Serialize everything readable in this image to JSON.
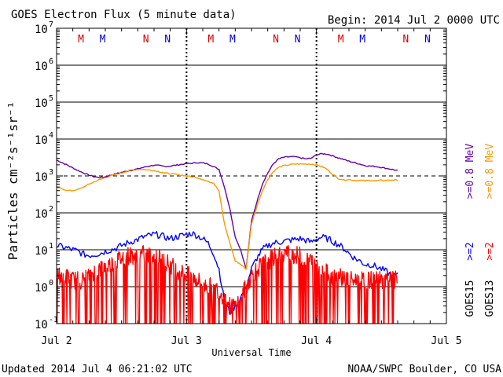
{
  "chart_data": {
    "type": "line",
    "title": "GOES Electron Flux (5 minute data)",
    "begin_label": "Begin: 2014 Jul 2 0000 UTC",
    "xlabel": "Universal Time",
    "ylabel": "Particles cm⁻²s⁻¹sr⁻¹",
    "xlim": [
      0,
      72
    ],
    "x_unit": "hours since 2014 Jul 2 0000 UTC",
    "x_ticks": [
      {
        "x": 0,
        "label": "Jul 2"
      },
      {
        "x": 24,
        "label": "Jul 3"
      },
      {
        "x": 48,
        "label": "Jul 4"
      },
      {
        "x": 72,
        "label": "Jul 5"
      }
    ],
    "y_scale": "log",
    "ylim": [
      0.1,
      10000000
    ],
    "y_ticks": [
      {
        "exp": "-1",
        "value": 0.1
      },
      {
        "exp": "0",
        "value": 1
      },
      {
        "exp": "1",
        "value": 10
      },
      {
        "exp": "2",
        "value": 100
      },
      {
        "exp": "3",
        "value": 1000
      },
      {
        "exp": "4",
        "value": 10000
      },
      {
        "exp": "5",
        "value": 100000
      },
      {
        "exp": "6",
        "value": 1000000
      },
      {
        "exp": "7",
        "value": 10000000
      }
    ],
    "y_tick_base": "10",
    "threshold": {
      "value": 1000,
      "style": "dashed"
    },
    "markers": [
      {
        "x": 4.5,
        "label": "M",
        "color": "#dd0000"
      },
      {
        "x": 8.5,
        "label": "M",
        "color": "#0000dd"
      },
      {
        "x": 16.5,
        "label": "N",
        "color": "#dd0000"
      },
      {
        "x": 20.5,
        "label": "N",
        "color": "#0000dd"
      },
      {
        "x": 28.5,
        "label": "M",
        "color": "#dd0000"
      },
      {
        "x": 32.5,
        "label": "M",
        "color": "#0000dd"
      },
      {
        "x": 40.5,
        "label": "N",
        "color": "#dd0000"
      },
      {
        "x": 44.5,
        "label": "N",
        "color": "#0000dd"
      },
      {
        "x": 52.5,
        "label": "M",
        "color": "#dd0000"
      },
      {
        "x": 56.5,
        "label": "M",
        "color": "#0000dd"
      },
      {
        "x": 64.5,
        "label": "N",
        "color": "#dd0000"
      },
      {
        "x": 68.5,
        "label": "N",
        "color": "#0000dd"
      }
    ],
    "satellite_labels": [
      "GOES15",
      "GOES13"
    ],
    "legend": [
      {
        "label": ">=0.8 MeV",
        "satellite": "GOES15",
        "color": "#6600aa"
      },
      {
        "label": ">=0.8 MeV",
        "satellite": "GOES13",
        "color": "#ff9900"
      },
      {
        "label": ">=2",
        "satellite": "GOES15",
        "color": "#0000ff"
      },
      {
        "label": ">=2",
        "satellite": "GOES13",
        "color": "#ff0000"
      }
    ],
    "series": [
      {
        "name": ">=0.8 MeV GOES15",
        "color": "#6600aa",
        "style": "line",
        "x": [
          0,
          1,
          2,
          3,
          4,
          5,
          6,
          7,
          8,
          9,
          10,
          11,
          12,
          13,
          14,
          15,
          16,
          17,
          18,
          19,
          20,
          21,
          22,
          23,
          24,
          25,
          26,
          27,
          28,
          29,
          30,
          31,
          32,
          33,
          34,
          35,
          36,
          37,
          38,
          39,
          40,
          41,
          42,
          43,
          44,
          45,
          46,
          47,
          48,
          49,
          50,
          51,
          52,
          53,
          54,
          55,
          56,
          57,
          58,
          59,
          60,
          61,
          62,
          63
        ],
        "y": [
          2700,
          2300,
          1950,
          1650,
          1400,
          1200,
          1050,
          950,
          900,
          950,
          1050,
          1150,
          1250,
          1350,
          1450,
          1550,
          1700,
          1850,
          1950,
          1900,
          1800,
          1850,
          1950,
          2050,
          2150,
          2200,
          2300,
          2250,
          2100,
          1800,
          1500,
          500,
          130,
          22,
          10,
          3,
          60,
          200,
          600,
          1200,
          2100,
          2900,
          3200,
          3300,
          3300,
          3100,
          2900,
          3000,
          3700,
          4000,
          3900,
          3500,
          3100,
          2800,
          2500,
          2300,
          2100,
          1900,
          1850,
          1800,
          1700,
          1600,
          1500,
          1400
        ]
      },
      {
        "name": ">=0.8 MeV GOES13",
        "color": "#ff9900",
        "style": "line",
        "x": [
          0,
          1,
          2,
          3,
          4,
          5,
          6,
          7,
          8,
          9,
          10,
          11,
          12,
          13,
          14,
          15,
          16,
          17,
          18,
          19,
          20,
          21,
          22,
          23,
          24,
          25,
          26,
          27,
          28,
          29,
          30,
          31,
          32,
          33,
          34,
          35,
          36,
          37,
          38,
          39,
          40,
          41,
          42,
          43,
          44,
          45,
          46,
          47,
          48,
          49,
          50,
          51,
          52,
          53,
          54,
          55,
          56,
          57,
          58,
          59,
          60,
          61,
          62,
          63
        ],
        "y": [
          500,
          450,
          400,
          400,
          430,
          500,
          600,
          700,
          800,
          900,
          1000,
          1100,
          1200,
          1350,
          1450,
          1500,
          1500,
          1450,
          1400,
          1300,
          1200,
          1150,
          1100,
          1050,
          1000,
          950,
          900,
          800,
          700,
          650,
          400,
          50,
          15,
          5,
          4,
          3,
          50,
          150,
          400,
          800,
          1300,
          1700,
          1900,
          2000,
          2100,
          2100,
          2100,
          2100,
          2000,
          1800,
          1500,
          1100,
          850,
          780,
          800,
          760,
          760,
          740,
          760,
          740,
          760,
          760,
          780,
          760
        ]
      },
      {
        "name": ">=2 GOES15",
        "color": "#0000ff",
        "style": "line",
        "x": [
          0,
          1,
          2,
          3,
          4,
          5,
          6,
          7,
          8,
          9,
          10,
          11,
          12,
          13,
          14,
          15,
          16,
          17,
          18,
          19,
          20,
          21,
          22,
          23,
          24,
          25,
          26,
          27,
          28,
          29,
          30,
          31,
          32,
          33,
          34,
          35,
          36,
          37,
          38,
          39,
          40,
          41,
          42,
          43,
          44,
          45,
          46,
          47,
          48,
          49,
          50,
          51,
          52,
          53,
          54,
          55,
          56,
          57,
          58,
          59,
          60,
          61,
          62,
          63
        ],
        "y": [
          13,
          12,
          11,
          10,
          9,
          7.5,
          7,
          7.5,
          8,
          9,
          10,
          11,
          13,
          15,
          17,
          19,
          22,
          24,
          26,
          25,
          22,
          20,
          22,
          24,
          26,
          28,
          24,
          20,
          15,
          8,
          3,
          0.4,
          0.2,
          0.3,
          0.5,
          1,
          3,
          6,
          10,
          13,
          15,
          16,
          17,
          18,
          19,
          20,
          18,
          16,
          20,
          22,
          20,
          17,
          14,
          11,
          8,
          6,
          5,
          4,
          4,
          3.5,
          3,
          2.5,
          2,
          2
        ]
      },
      {
        "name": ">=2 GOES13",
        "color": "#ff0000",
        "style": "noisy",
        "x": [
          0,
          1,
          2,
          3,
          4,
          5,
          6,
          7,
          8,
          9,
          10,
          11,
          12,
          13,
          14,
          15,
          16,
          17,
          18,
          19,
          20,
          21,
          22,
          23,
          24,
          25,
          26,
          27,
          28,
          29,
          30,
          31,
          32,
          33,
          34,
          35,
          36,
          37,
          38,
          39,
          40,
          41,
          42,
          43,
          44,
          45,
          46,
          47,
          48,
          49,
          50,
          51,
          52,
          53,
          54,
          55,
          56,
          57,
          58,
          59,
          60,
          61,
          62,
          63
        ],
        "y": [
          2,
          2,
          1.8,
          1.5,
          1.5,
          1.5,
          2,
          2.5,
          3,
          3.5,
          4,
          5,
          6,
          7,
          7,
          7,
          7.5,
          7,
          6.5,
          6,
          5,
          4,
          3,
          2.5,
          2,
          2,
          1.5,
          1.2,
          1,
          1,
          0.8,
          0.5,
          0.3,
          0.3,
          0.5,
          1,
          2,
          3,
          4,
          5,
          6,
          7,
          8,
          8,
          7,
          7,
          6,
          5,
          4,
          3,
          2.5,
          2,
          2,
          1.8,
          1.5,
          1.5,
          1.5,
          1.5,
          1.5,
          1.5,
          1.5,
          1.5,
          1.5,
          1.5
        ]
      }
    ]
  },
  "footer": {
    "updated": "Updated 2014 Jul  4 06:21:02 UTC",
    "source": "NOAA/SWPC Boulder, CO USA"
  }
}
